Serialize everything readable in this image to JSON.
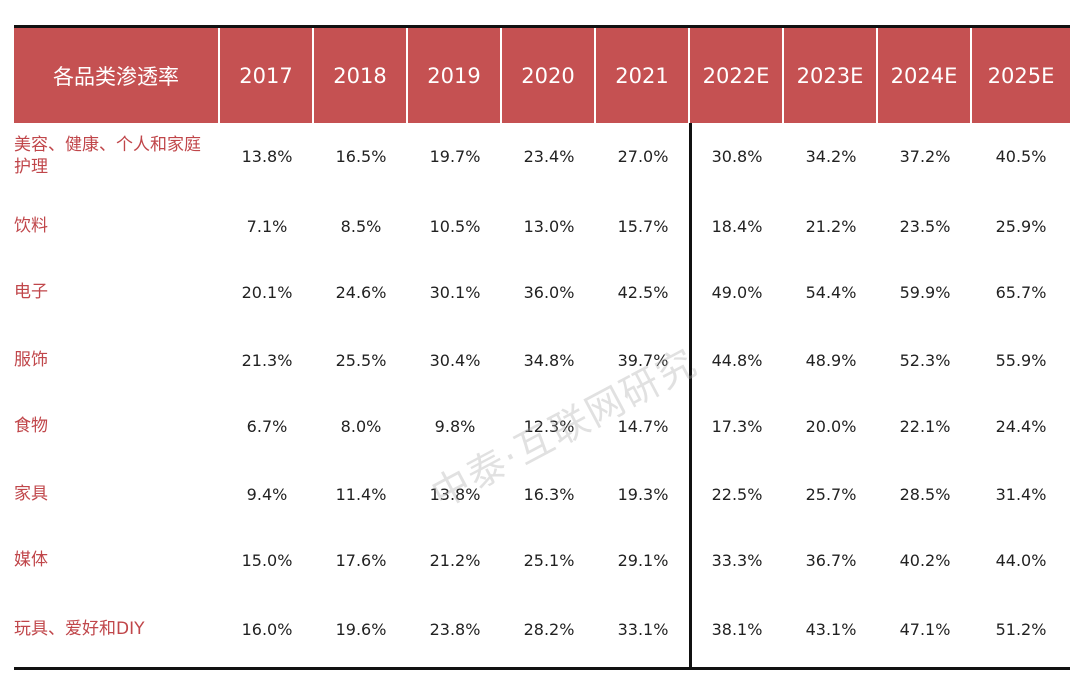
{
  "table": {
    "header": [
      "各品类渗透率",
      "2017",
      "2018",
      "2019",
      "2020",
      "2021",
      "2022E",
      "2023E",
      "2024E",
      "2025E"
    ],
    "rows": [
      {
        "label": "美容、健康、个人和家庭护理",
        "values": [
          "13.8%",
          "16.5%",
          "19.7%",
          "23.4%",
          "27.0%",
          "30.8%",
          "34.2%",
          "37.2%",
          "40.5%"
        ]
      },
      {
        "label": "饮料",
        "values": [
          "7.1%",
          "8.5%",
          "10.5%",
          "13.0%",
          "15.7%",
          "18.4%",
          "21.2%",
          "23.5%",
          "25.9%"
        ]
      },
      {
        "label": "电子",
        "values": [
          "20.1%",
          "24.6%",
          "30.1%",
          "36.0%",
          "42.5%",
          "49.0%",
          "54.4%",
          "59.9%",
          "65.7%"
        ]
      },
      {
        "label": "服饰",
        "values": [
          "21.3%",
          "25.5%",
          "30.4%",
          "34.8%",
          "39.7%",
          "44.8%",
          "48.9%",
          "52.3%",
          "55.9%"
        ]
      },
      {
        "label": "食物",
        "values": [
          "6.7%",
          "8.0%",
          "9.8%",
          "12.3%",
          "14.7%",
          "17.3%",
          "20.0%",
          "22.1%",
          "24.4%"
        ]
      },
      {
        "label": "家具",
        "values": [
          "9.4%",
          "11.4%",
          "13.8%",
          "16.3%",
          "19.3%",
          "22.5%",
          "25.7%",
          "28.5%",
          "31.4%"
        ]
      },
      {
        "label": "媒体",
        "values": [
          "15.0%",
          "17.6%",
          "21.2%",
          "25.1%",
          "29.1%",
          "33.3%",
          "36.7%",
          "40.2%",
          "44.0%"
        ]
      },
      {
        "label": "玩具、爱好和DIY",
        "values": [
          "16.0%",
          "19.6%",
          "23.8%",
          "28.2%",
          "33.1%",
          "38.1%",
          "43.1%",
          "47.1%",
          "51.2%"
        ]
      }
    ]
  },
  "watermark": "中泰·互联网研究",
  "colors": {
    "header_bg": "#c55152",
    "label_text": "#c0464a"
  }
}
